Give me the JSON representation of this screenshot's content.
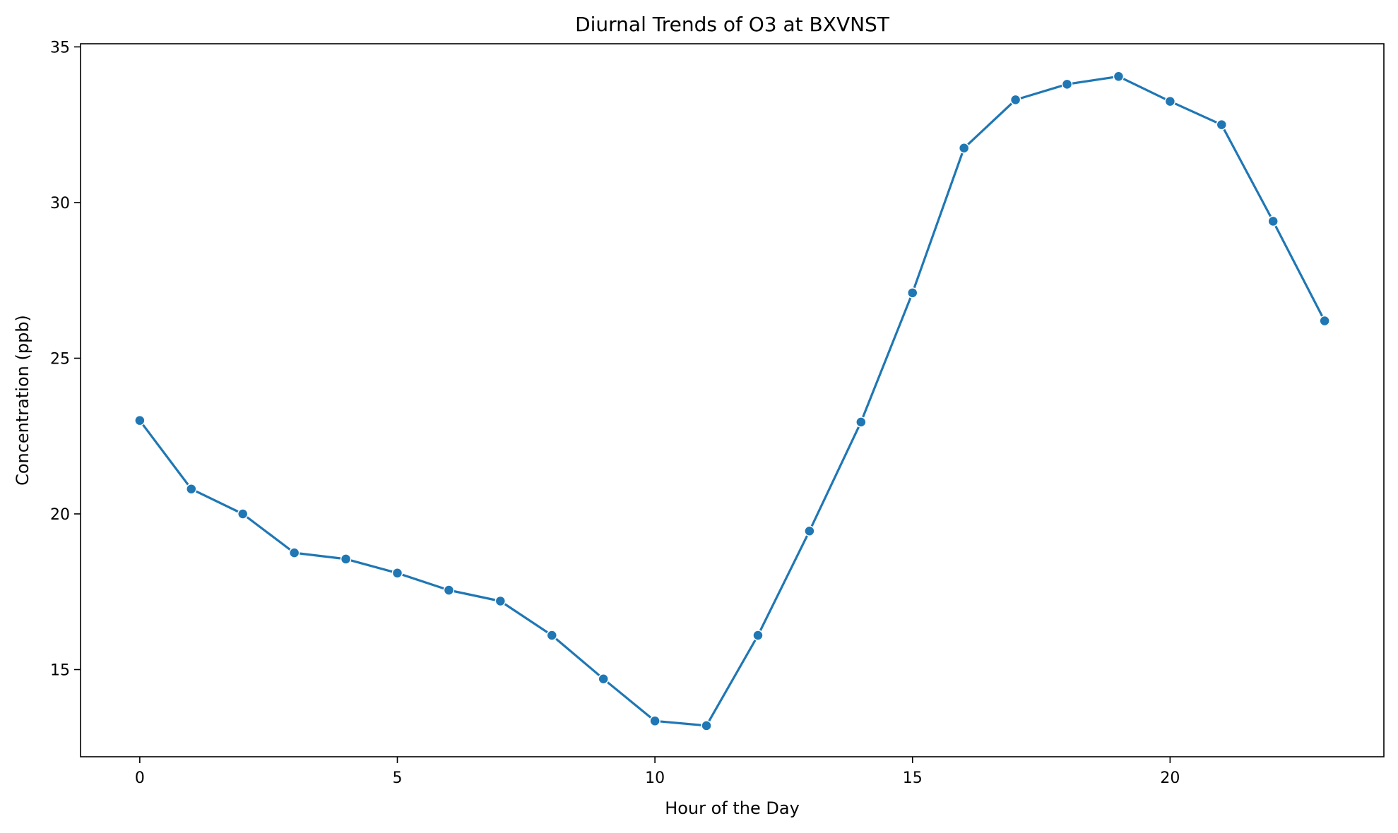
{
  "chart_data": {
    "type": "line",
    "title": "Diurnal Trends of O3 at BXVNST",
    "xlabel": "Hour of the Day",
    "ylabel": "Concentration (ppb)",
    "xlim": [
      -1.15,
      24.15
    ],
    "ylim": [
      12.2,
      35.1
    ],
    "xticks": [
      0,
      5,
      10,
      15,
      20
    ],
    "yticks": [
      15,
      20,
      25,
      30,
      35
    ],
    "grid": false,
    "series": [
      {
        "color": "#1f77b4",
        "x": [
          0,
          1,
          2,
          3,
          4,
          5,
          6,
          7,
          8,
          9,
          10,
          11,
          12,
          13,
          14,
          15,
          16,
          17,
          18,
          19,
          20,
          21,
          22,
          23
        ],
        "y": [
          23.0,
          20.8,
          20.0,
          18.75,
          18.55,
          18.1,
          17.55,
          17.2,
          16.1,
          14.7,
          13.35,
          13.2,
          16.1,
          19.45,
          22.95,
          27.1,
          31.75,
          33.3,
          33.8,
          34.05,
          33.25,
          32.5,
          29.4,
          26.2
        ]
      }
    ]
  }
}
